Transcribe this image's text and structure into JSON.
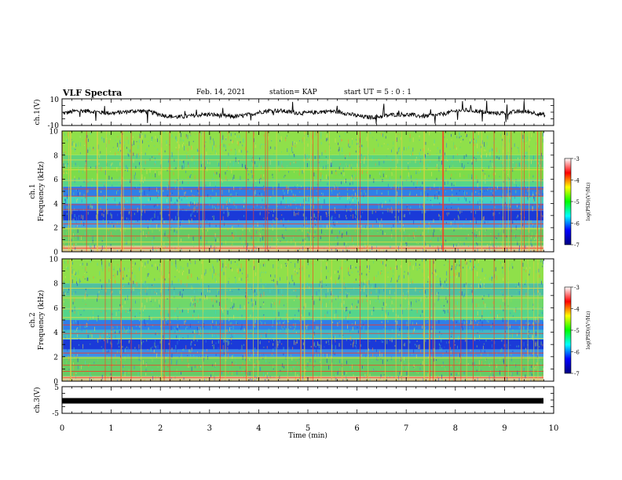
{
  "header": {
    "title": "VLF Spectra",
    "date": "Feb. 14, 2021",
    "station": "station= KAP",
    "start": "start  UT =   5 : 0  : 1"
  },
  "chart_data": [
    {
      "type": "line",
      "panel": "ch1-waveform",
      "ylabel": "ch.1(V)",
      "ylim": [
        -10,
        10
      ],
      "yticks": [
        "10",
        "-10"
      ],
      "xlim": [
        0,
        10
      ],
      "x_end": 9.83,
      "note": "noisy waveform, roughly -5 to +3 V"
    },
    {
      "type": "heatmap",
      "panel": "ch1-spectrogram",
      "ylabel": "ch.1\nFrequency (kHz)",
      "ylabel_line1": "ch.1",
      "ylabel_line2": "Frequency (kHz)",
      "ylim": [
        0,
        10
      ],
      "yticks": [
        "0",
        "2",
        "4",
        "6",
        "8",
        "10"
      ],
      "xlim": [
        0,
        10
      ],
      "colorbar": {
        "label": "log(PSD)(V²/Hz)",
        "range": [
          -7,
          -3
        ],
        "ticks": [
          "-3",
          "-4",
          "-5",
          "-6",
          "-7"
        ],
        "colors": [
          "#000080",
          "#0000ff",
          "#00ffff",
          "#00ff00",
          "#ffff00",
          "#ff0000",
          "#ffffff"
        ]
      },
      "bands_khz": [
        {
          "from": 0.0,
          "to": 0.5,
          "color": "#d6c58e"
        },
        {
          "from": 0.5,
          "to": 2.0,
          "color": "#66cc66"
        },
        {
          "from": 2.0,
          "to": 2.6,
          "color": "#4aa0e0"
        },
        {
          "from": 2.6,
          "to": 3.4,
          "color": "#1a3ad8"
        },
        {
          "from": 3.4,
          "to": 4.0,
          "color": "#2f7fe8"
        },
        {
          "from": 4.0,
          "to": 4.6,
          "color": "#45d3c2"
        },
        {
          "from": 4.6,
          "to": 5.4,
          "color": "#2f7fe8"
        },
        {
          "from": 5.4,
          "to": 6.0,
          "color": "#55d58a"
        },
        {
          "from": 6.0,
          "to": 7.0,
          "color": "#7cdc4a"
        },
        {
          "from": 7.0,
          "to": 8.0,
          "color": "#5ed47a"
        },
        {
          "from": 8.0,
          "to": 10.0,
          "color": "#8fe04a"
        }
      ]
    },
    {
      "type": "heatmap",
      "panel": "ch2-spectrogram",
      "ylabel_line1": "ch.2",
      "ylabel_line2": "Frequency (kHz)",
      "ylim": [
        0,
        10
      ],
      "yticks": [
        "0",
        "2",
        "4",
        "6",
        "8",
        "10"
      ],
      "xlim": [
        0,
        10
      ],
      "colorbar": {
        "label": "log(PSD)(V²/Hz)",
        "range": [
          -7,
          -3
        ],
        "ticks": [
          "-3",
          "-4",
          "-5",
          "-6",
          "-7"
        ],
        "colors": [
          "#000080",
          "#0000ff",
          "#00ffff",
          "#00ff00",
          "#ffff00",
          "#ff0000",
          "#ffffff"
        ]
      },
      "bands_khz": [
        {
          "from": 0.0,
          "to": 0.4,
          "color": "#d6c58e"
        },
        {
          "from": 0.4,
          "to": 2.0,
          "color": "#66cc66"
        },
        {
          "from": 2.0,
          "to": 2.6,
          "color": "#3b8fe6"
        },
        {
          "from": 2.6,
          "to": 3.4,
          "color": "#1a3ad8"
        },
        {
          "from": 3.4,
          "to": 4.2,
          "color": "#3fb8c8"
        },
        {
          "from": 4.2,
          "to": 5.0,
          "color": "#2f7fe8"
        },
        {
          "from": 5.0,
          "to": 6.0,
          "color": "#55d58a"
        },
        {
          "from": 6.0,
          "to": 7.0,
          "color": "#6fd86a"
        },
        {
          "from": 7.0,
          "to": 8.0,
          "color": "#4fc0a0"
        },
        {
          "from": 8.0,
          "to": 10.0,
          "color": "#8fe04a"
        }
      ]
    },
    {
      "type": "line",
      "panel": "ch3-waveform",
      "ylabel": "ch.3(V)",
      "ylim": [
        -5,
        5
      ],
      "yticks": [
        "5",
        "-5"
      ],
      "xlim": [
        0,
        10
      ],
      "value": -0.3,
      "note": "thick constant black band"
    }
  ],
  "xaxis": {
    "label": "Time (min)",
    "ticks": [
      "0",
      "1",
      "2",
      "3",
      "4",
      "5",
      "6",
      "7",
      "8",
      "9",
      "10"
    ]
  }
}
